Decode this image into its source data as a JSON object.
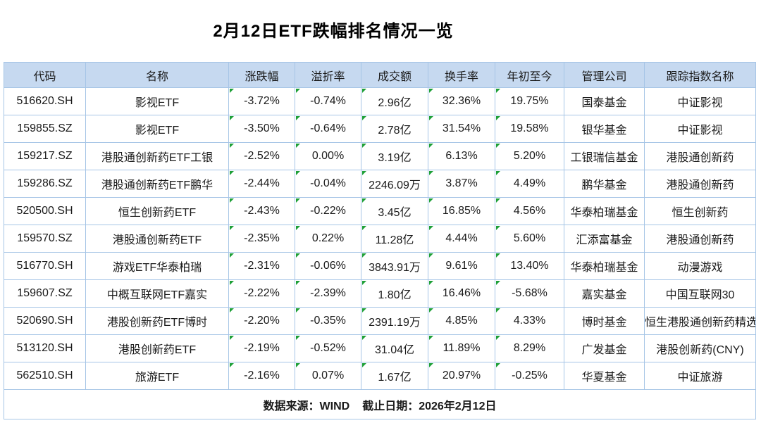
{
  "title": "2月12日ETF跌幅排名情况一览",
  "table": {
    "columns": [
      "代码",
      "名称",
      "涨跌幅",
      "溢折率",
      "成交额",
      "换手率",
      "年初至今",
      "管理公司",
      "跟踪指数名称"
    ],
    "column_keys": [
      "code",
      "name",
      "change",
      "premium",
      "turnover",
      "turnover-rate",
      "ytd",
      "company",
      "index"
    ],
    "triangle_columns": [
      2,
      3,
      4,
      5,
      6
    ],
    "rows": [
      [
        "516620.SH",
        "影视ETF",
        "-3.72%",
        "-0.74%",
        "2.96亿",
        "32.36%",
        "19.75%",
        "国泰基金",
        "中证影视"
      ],
      [
        "159855.SZ",
        "影视ETF",
        "-3.50%",
        "-0.64%",
        "2.78亿",
        "31.54%",
        "19.58%",
        "银华基金",
        "中证影视"
      ],
      [
        "159217.SZ",
        "港股通创新药ETF工银",
        "-2.52%",
        "0.00%",
        "3.19亿",
        "6.13%",
        "5.20%",
        "工银瑞信基金",
        "港股通创新药"
      ],
      [
        "159286.SZ",
        "港股通创新药ETF鹏华",
        "-2.44%",
        "-0.04%",
        "2246.09万",
        "3.87%",
        "4.49%",
        "鹏华基金",
        "港股通创新药"
      ],
      [
        "520500.SH",
        "恒生创新药ETF",
        "-2.43%",
        "-0.22%",
        "3.45亿",
        "16.85%",
        "4.56%",
        "华泰柏瑞基金",
        "恒生创新药"
      ],
      [
        "159570.SZ",
        "港股通创新药ETF",
        "-2.35%",
        "0.22%",
        "11.28亿",
        "4.44%",
        "5.60%",
        "汇添富基金",
        "港股通创新药"
      ],
      [
        "516770.SH",
        "游戏ETF华泰柏瑞",
        "-2.31%",
        "-0.06%",
        "3843.91万",
        "9.61%",
        "13.40%",
        "华泰柏瑞基金",
        "动漫游戏"
      ],
      [
        "159607.SZ",
        "中概互联网ETF嘉实",
        "-2.22%",
        "-2.39%",
        "1.80亿",
        "16.46%",
        "-5.68%",
        "嘉实基金",
        "中国互联网30"
      ],
      [
        "520690.SH",
        "港股创新药ETF博时",
        "-2.20%",
        "-0.35%",
        "2391.19万",
        "4.85%",
        "4.33%",
        "博时基金",
        "恒生港股通创新药精选"
      ],
      [
        "513120.SH",
        "港股创新药ETF",
        "-2.19%",
        "-0.52%",
        "31.04亿",
        "11.89%",
        "8.29%",
        "广发基金",
        "港股创新药(CNY)"
      ],
      [
        "562510.SH",
        "旅游ETF",
        "-2.16%",
        "0.07%",
        "1.67亿",
        "20.97%",
        "-0.25%",
        "华夏基金",
        "中证旅游"
      ]
    ]
  },
  "footer": {
    "source": "数据来源：WIND",
    "deadline": "截止日期：2026年2月12日"
  },
  "colors": {
    "header_bg": "#c6d9f0",
    "border": "#a6c5e6",
    "triangle_green": "#1fa038",
    "text": "#1a1a1a"
  }
}
